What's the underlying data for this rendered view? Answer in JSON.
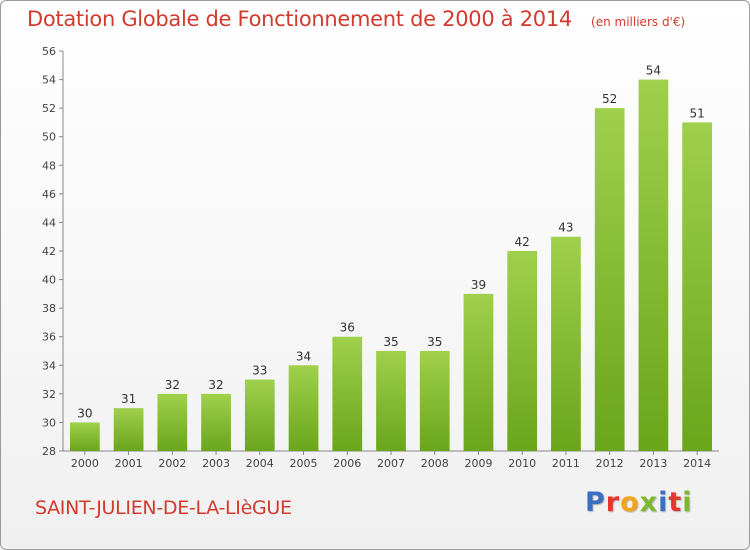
{
  "header": {
    "title": "Dotation Globale de Fonctionnement de 2000 à 2014",
    "unit": "(en milliers d'€)"
  },
  "footer": {
    "commune": "SAINT-JULIEN-DE-LA-LIèGUE",
    "logo": {
      "letters": [
        "P",
        "r",
        "o",
        "x",
        "i",
        "t",
        "i"
      ],
      "colors": [
        "#3b6fc4",
        "#e8352b",
        "#f2a51c",
        "#7ab82e",
        "#3b6fc4",
        "#e8352b",
        "#7ab82e"
      ]
    }
  },
  "chart_data": {
    "type": "bar",
    "title": "Dotation Globale de Fonctionnement de 2000 à 2014",
    "categories": [
      "2000",
      "2001",
      "2002",
      "2003",
      "2004",
      "2005",
      "2006",
      "2007",
      "2008",
      "2009",
      "2010",
      "2011",
      "2012",
      "2013",
      "2014"
    ],
    "values": [
      30,
      31,
      32,
      32,
      33,
      34,
      36,
      35,
      35,
      39,
      42,
      43,
      52,
      54,
      51
    ],
    "ylim": [
      28,
      56
    ],
    "yticks": [
      28,
      30,
      32,
      34,
      36,
      38,
      40,
      42,
      44,
      46,
      48,
      50,
      52,
      54,
      56
    ],
    "grid": false,
    "bar_color_light": "#9fd04c",
    "bar_color_dark": "#6aa51a"
  }
}
